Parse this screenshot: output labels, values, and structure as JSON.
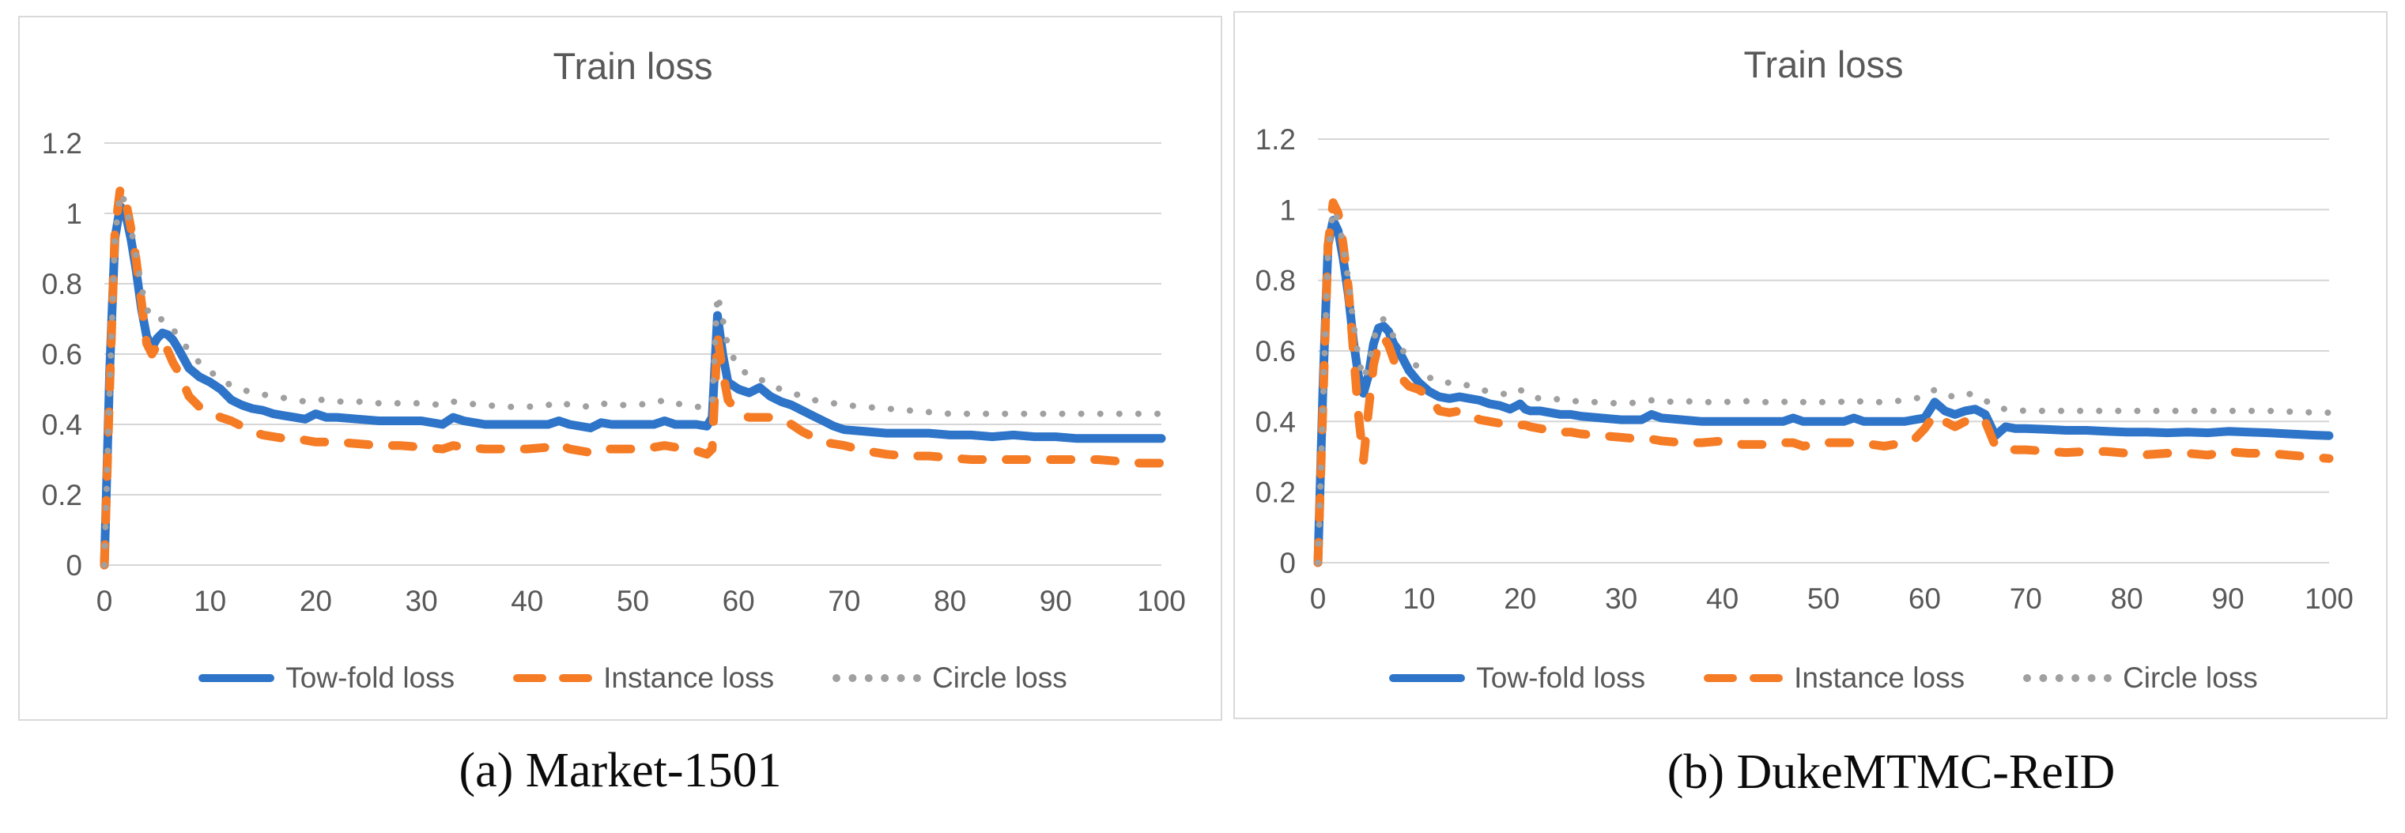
{
  "legend_labels": [
    "Tow-fold loss",
    "Instance loss",
    "Circle loss"
  ],
  "chart_data": [
    {
      "type": "line",
      "id": "market-1501",
      "title": "Train loss",
      "caption": "(a) Market-1501",
      "xlabel": "",
      "ylabel": "",
      "xlim": [
        0,
        100
      ],
      "ylim": [
        0,
        1.2
      ],
      "x_ticks": [
        0,
        10,
        20,
        30,
        40,
        50,
        60,
        70,
        80,
        90,
        100
      ],
      "y_ticks": [
        0,
        0.2,
        0.4,
        0.6,
        0.8,
        1,
        1.2
      ],
      "grid": true,
      "legend_position": "bottom",
      "x": [
        0,
        0.5,
        1,
        1.5,
        2,
        2.5,
        3,
        3.5,
        4,
        4.5,
        5,
        5.5,
        6,
        6.5,
        7,
        8,
        9,
        10,
        11,
        12,
        13,
        14,
        15,
        16,
        17,
        18,
        19,
        20,
        21,
        22,
        24,
        26,
        28,
        30,
        32,
        33,
        34,
        36,
        38,
        40,
        42,
        43,
        44,
        46,
        47,
        48,
        50,
        52,
        53,
        54,
        55,
        56,
        57,
        57.5,
        58,
        58.5,
        59,
        60,
        61,
        62,
        63,
        64,
        65,
        66,
        67,
        68,
        69,
        70,
        72,
        74,
        76,
        78,
        80,
        82,
        84,
        86,
        88,
        90,
        92,
        94,
        96,
        98,
        100
      ],
      "series": [
        {
          "name": "Tow-fold loss",
          "style": "solid",
          "color": "#2E74C8",
          "values": [
            0,
            0.55,
            0.93,
            1.02,
            1.0,
            0.93,
            0.84,
            0.73,
            0.65,
            0.62,
            0.645,
            0.66,
            0.655,
            0.64,
            0.615,
            0.56,
            0.535,
            0.52,
            0.5,
            0.47,
            0.455,
            0.445,
            0.44,
            0.43,
            0.425,
            0.42,
            0.415,
            0.43,
            0.42,
            0.42,
            0.415,
            0.41,
            0.41,
            0.41,
            0.4,
            0.42,
            0.41,
            0.4,
            0.4,
            0.4,
            0.4,
            0.41,
            0.4,
            0.39,
            0.405,
            0.4,
            0.4,
            0.4,
            0.41,
            0.4,
            0.4,
            0.4,
            0.395,
            0.42,
            0.71,
            0.6,
            0.52,
            0.5,
            0.49,
            0.505,
            0.48,
            0.465,
            0.455,
            0.44,
            0.425,
            0.41,
            0.395,
            0.385,
            0.38,
            0.375,
            0.375,
            0.375,
            0.37,
            0.37,
            0.365,
            0.37,
            0.365,
            0.365,
            0.36,
            0.36,
            0.36,
            0.36,
            0.36
          ]
        },
        {
          "name": "Instance loss",
          "style": "dashed",
          "color": "#F57B25",
          "values": [
            0,
            0.5,
            0.95,
            1.07,
            1.04,
            0.96,
            0.87,
            0.75,
            0.63,
            0.6,
            0.625,
            0.64,
            0.61,
            0.575,
            0.55,
            0.48,
            0.45,
            0.435,
            0.42,
            0.41,
            0.395,
            0.38,
            0.37,
            0.365,
            0.36,
            0.36,
            0.355,
            0.35,
            0.35,
            0.35,
            0.345,
            0.34,
            0.34,
            0.335,
            0.33,
            0.34,
            0.335,
            0.33,
            0.33,
            0.33,
            0.335,
            0.345,
            0.33,
            0.32,
            0.33,
            0.33,
            0.33,
            0.335,
            0.34,
            0.335,
            0.33,
            0.325,
            0.315,
            0.33,
            0.65,
            0.55,
            0.47,
            0.43,
            0.42,
            0.42,
            0.42,
            0.415,
            0.4,
            0.38,
            0.365,
            0.35,
            0.345,
            0.34,
            0.325,
            0.315,
            0.31,
            0.31,
            0.305,
            0.3,
            0.3,
            0.3,
            0.3,
            0.3,
            0.3,
            0.3,
            0.295,
            0.29,
            0.29
          ]
        },
        {
          "name": "Circle loss",
          "style": "dotted",
          "color": "#A0A0A0",
          "values": [
            0,
            0.5,
            0.93,
            1.06,
            1.03,
            0.96,
            0.88,
            0.79,
            0.73,
            0.7,
            0.695,
            0.7,
            0.69,
            0.67,
            0.65,
            0.61,
            0.575,
            0.55,
            0.53,
            0.51,
            0.5,
            0.49,
            0.485,
            0.48,
            0.475,
            0.47,
            0.465,
            0.47,
            0.47,
            0.465,
            0.465,
            0.46,
            0.46,
            0.46,
            0.455,
            0.465,
            0.46,
            0.455,
            0.45,
            0.45,
            0.455,
            0.465,
            0.455,
            0.45,
            0.46,
            0.455,
            0.455,
            0.46,
            0.47,
            0.46,
            0.455,
            0.45,
            0.45,
            0.46,
            0.77,
            0.7,
            0.62,
            0.56,
            0.54,
            0.53,
            0.51,
            0.5,
            0.49,
            0.48,
            0.47,
            0.465,
            0.46,
            0.455,
            0.45,
            0.445,
            0.44,
            0.435,
            0.43,
            0.43,
            0.43,
            0.43,
            0.43,
            0.43,
            0.43,
            0.43,
            0.43,
            0.43,
            0.43
          ]
        }
      ]
    },
    {
      "type": "line",
      "id": "dukemtmc-reid",
      "title": "Train loss",
      "caption": "(b) DukeMTMC-ReID",
      "xlabel": "",
      "ylabel": "",
      "xlim": [
        0,
        100
      ],
      "ylim": [
        0,
        1.2
      ],
      "x_ticks": [
        0,
        10,
        20,
        30,
        40,
        50,
        60,
        70,
        80,
        90,
        100
      ],
      "y_ticks": [
        0,
        0.2,
        0.4,
        0.6,
        0.8,
        1,
        1.2
      ],
      "grid": true,
      "legend_position": "bottom",
      "x": [
        0,
        0.5,
        1,
        1.5,
        2,
        2.5,
        3,
        3.5,
        4,
        4.5,
        5,
        5.5,
        6,
        6.5,
        7,
        7.5,
        8,
        9,
        10,
        11,
        12,
        13,
        14,
        15,
        16,
        17,
        18,
        19,
        20,
        20.5,
        21,
        22,
        23,
        24,
        25,
        26,
        28,
        30,
        32,
        33,
        34,
        36,
        38,
        40,
        42,
        44,
        46,
        47,
        48,
        50,
        52,
        53,
        54,
        56,
        58,
        59,
        60,
        61,
        62,
        63,
        64,
        65,
        66,
        67,
        68,
        69,
        70,
        72,
        74,
        76,
        78,
        80,
        82,
        84,
        86,
        88,
        90,
        92,
        94,
        96,
        98,
        100
      ],
      "series": [
        {
          "name": "Tow-fold loss",
          "style": "solid",
          "color": "#2E74C8",
          "values": [
            0,
            0.5,
            0.9,
            0.97,
            0.94,
            0.86,
            0.76,
            0.63,
            0.53,
            0.48,
            0.53,
            0.62,
            0.665,
            0.67,
            0.655,
            0.62,
            0.6,
            0.545,
            0.51,
            0.485,
            0.47,
            0.465,
            0.47,
            0.465,
            0.46,
            0.45,
            0.445,
            0.435,
            0.45,
            0.435,
            0.43,
            0.43,
            0.425,
            0.42,
            0.42,
            0.415,
            0.41,
            0.405,
            0.405,
            0.42,
            0.41,
            0.405,
            0.4,
            0.4,
            0.4,
            0.4,
            0.4,
            0.41,
            0.4,
            0.4,
            0.4,
            0.41,
            0.4,
            0.4,
            0.4,
            0.405,
            0.41,
            0.455,
            0.43,
            0.42,
            0.43,
            0.435,
            0.42,
            0.36,
            0.385,
            0.38,
            0.38,
            0.378,
            0.375,
            0.375,
            0.372,
            0.37,
            0.37,
            0.368,
            0.37,
            0.368,
            0.372,
            0.37,
            0.368,
            0.365,
            0.362,
            0.36
          ]
        },
        {
          "name": "Instance loss",
          "style": "dashed",
          "color": "#F57B25",
          "values": [
            0,
            0.45,
            0.9,
            1.02,
            0.99,
            0.9,
            0.78,
            0.6,
            0.42,
            0.29,
            0.43,
            0.56,
            0.62,
            0.64,
            0.615,
            0.575,
            0.53,
            0.5,
            0.49,
            0.47,
            0.43,
            0.425,
            0.43,
            0.42,
            0.405,
            0.4,
            0.395,
            0.39,
            0.39,
            0.39,
            0.385,
            0.38,
            0.375,
            0.37,
            0.37,
            0.365,
            0.36,
            0.355,
            0.35,
            0.35,
            0.345,
            0.34,
            0.34,
            0.345,
            0.335,
            0.335,
            0.34,
            0.34,
            0.33,
            0.34,
            0.34,
            0.34,
            0.338,
            0.33,
            0.34,
            0.35,
            0.38,
            0.42,
            0.4,
            0.385,
            0.4,
            0.41,
            0.4,
            0.33,
            0.322,
            0.32,
            0.32,
            0.316,
            0.312,
            0.315,
            0.315,
            0.31,
            0.306,
            0.31,
            0.31,
            0.305,
            0.315,
            0.31,
            0.31,
            0.305,
            0.3,
            0.295
          ]
        },
        {
          "name": "Circle loss",
          "style": "dotted",
          "color": "#A0A0A0",
          "values": [
            0,
            0.45,
            0.88,
            1.0,
            0.97,
            0.9,
            0.8,
            0.68,
            0.58,
            0.52,
            0.56,
            0.63,
            0.68,
            0.69,
            0.665,
            0.64,
            0.615,
            0.58,
            0.55,
            0.525,
            0.51,
            0.51,
            0.51,
            0.5,
            0.49,
            0.485,
            0.48,
            0.475,
            0.49,
            0.48,
            0.47,
            0.465,
            0.46,
            0.465,
            0.46,
            0.455,
            0.455,
            0.45,
            0.455,
            0.46,
            0.455,
            0.458,
            0.455,
            0.455,
            0.458,
            0.455,
            0.455,
            0.46,
            0.455,
            0.455,
            0.456,
            0.46,
            0.455,
            0.455,
            0.46,
            0.465,
            0.47,
            0.49,
            0.475,
            0.47,
            0.48,
            0.475,
            0.46,
            0.44,
            0.435,
            0.432,
            0.43,
            0.43,
            0.43,
            0.43,
            0.43,
            0.43,
            0.43,
            0.43,
            0.43,
            0.43,
            0.43,
            0.43,
            0.43,
            0.428,
            0.426,
            0.425
          ]
        }
      ]
    }
  ]
}
